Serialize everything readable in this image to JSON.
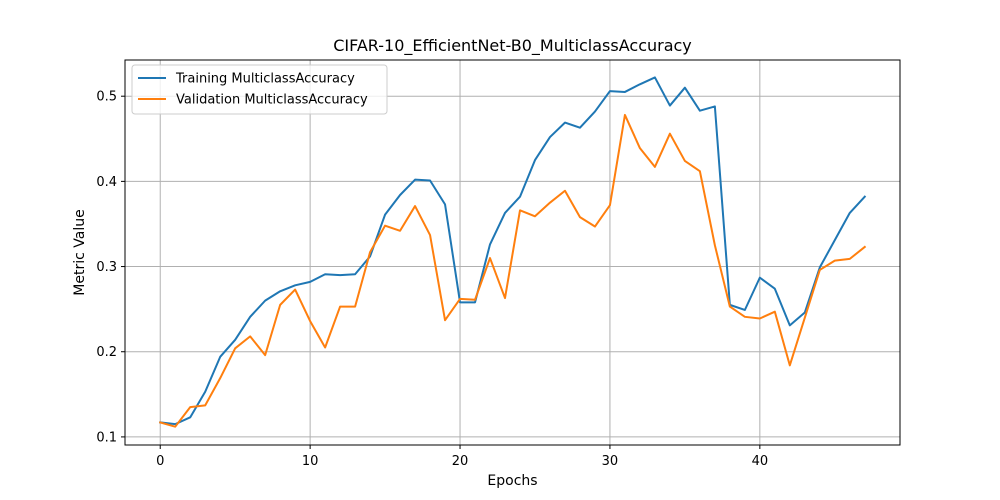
{
  "chart_data": {
    "type": "line",
    "title": "CIFAR-10_EfficientNet-B0_MulticlassAccuracy",
    "xlabel": "Epochs",
    "ylabel": "Metric Value",
    "xlim": [
      -2.35,
      49.35
    ],
    "ylim": [
      0.0905,
      0.5425
    ],
    "xticks": [
      0,
      10,
      20,
      30,
      40
    ],
    "yticks": [
      0.1,
      0.2,
      0.3,
      0.4,
      0.5
    ],
    "ytick_labels": [
      "0.1",
      "0.2",
      "0.3",
      "0.4",
      "0.5"
    ],
    "grid": true,
    "legend_position": "upper-left",
    "x": [
      0,
      1,
      2,
      3,
      4,
      5,
      6,
      7,
      8,
      9,
      10,
      11,
      12,
      13,
      14,
      15,
      16,
      17,
      18,
      19,
      20,
      21,
      22,
      23,
      24,
      25,
      26,
      27,
      28,
      29,
      30,
      31,
      32,
      33,
      34,
      35,
      36,
      37,
      38,
      39,
      40,
      41,
      42,
      43,
      44,
      45,
      46,
      47
    ],
    "series": [
      {
        "name": "Training MulticlassAccuracy",
        "color": "#1f77b4",
        "values": [
          0.117,
          0.115,
          0.123,
          0.153,
          0.194,
          0.214,
          0.241,
          0.26,
          0.271,
          0.278,
          0.282,
          0.291,
          0.29,
          0.291,
          0.312,
          0.361,
          0.384,
          0.402,
          0.401,
          0.373,
          0.258,
          0.258,
          0.326,
          0.363,
          0.382,
          0.425,
          0.452,
          0.469,
          0.463,
          0.482,
          0.506,
          0.505,
          0.514,
          0.522,
          0.489,
          0.51,
          0.483,
          0.488,
          0.255,
          0.249,
          0.287,
          0.274,
          0.231,
          0.246,
          0.299,
          0.331,
          0.363,
          0.382
        ]
      },
      {
        "name": "Validation MulticlassAccuracy",
        "color": "#ff7f0e",
        "values": [
          0.117,
          0.112,
          0.135,
          0.137,
          0.169,
          0.204,
          0.218,
          0.196,
          0.255,
          0.273,
          0.236,
          0.205,
          0.253,
          0.253,
          0.317,
          0.348,
          0.342,
          0.371,
          0.337,
          0.237,
          0.262,
          0.261,
          0.31,
          0.263,
          0.366,
          0.359,
          0.375,
          0.389,
          0.358,
          0.347,
          0.372,
          0.478,
          0.439,
          0.417,
          0.456,
          0.424,
          0.412,
          0.325,
          0.253,
          0.241,
          0.239,
          0.247,
          0.184,
          0.24,
          0.296,
          0.307,
          0.309,
          0.323
        ]
      }
    ]
  }
}
